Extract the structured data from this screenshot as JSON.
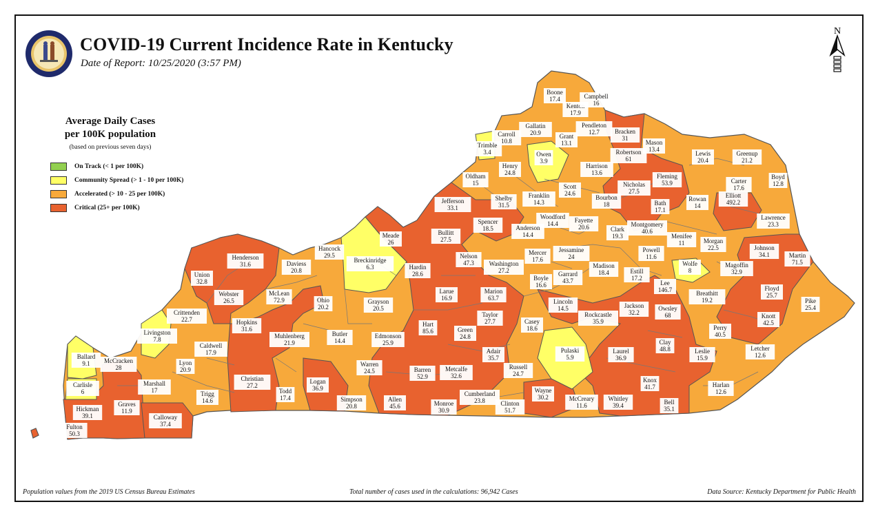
{
  "title": "COVID-19 Current Incidence Rate in Kentucky",
  "subtitle": "Date of Report: 10/25/2020 (3:57 PM)",
  "north_label": "N",
  "legend": {
    "title_line1": "Average Daily Cases",
    "title_line2": "per 100K population",
    "note": "(based on previous seven days)",
    "items": [
      {
        "label": "On Track (< 1 per 100K)",
        "color": "#92d050"
      },
      {
        "label": "Community Spread (> 1 - 10 per 100K)",
        "color": "#ffff66"
      },
      {
        "label": "Accelerated (> 10 - 25 per 100K)",
        "color": "#f7a93b"
      },
      {
        "label": "Critical (25+ per 100K)",
        "color": "#e8622f"
      }
    ]
  },
  "colors": {
    "outline": "#555555",
    "label_box": "#ffffff"
  },
  "footer": {
    "left": "Population values from the 2019 US Census Bureau Estimates",
    "center": "Total number of cases used in the calculations: 96,942 Cases",
    "right": "Data Source: Kentucky Department for Public Health"
  },
  "counties": [
    {
      "name": "Boone",
      "value": "17.4"
    },
    {
      "name": "Kenton",
      "value": "17.9"
    },
    {
      "name": "Campbell",
      "value": "16"
    },
    {
      "name": "Gallatin",
      "value": "20.9"
    },
    {
      "name": "Grant",
      "value": "13.1"
    },
    {
      "name": "Pendleton",
      "value": "12.7"
    },
    {
      "name": "Bracken",
      "value": "31"
    },
    {
      "name": "Mason",
      "value": "13.4"
    },
    {
      "name": "Robertson",
      "value": "61"
    },
    {
      "name": "Lewis",
      "value": "20.4"
    },
    {
      "name": "Greenup",
      "value": "21.2"
    },
    {
      "name": "Boyd",
      "value": "12.8"
    },
    {
      "name": "Carter",
      "value": "17.6"
    },
    {
      "name": "Carroll",
      "value": "10.8"
    },
    {
      "name": "Trimble",
      "value": "3.4"
    },
    {
      "name": "Owen",
      "value": "3.9"
    },
    {
      "name": "Henry",
      "value": "24.8"
    },
    {
      "name": "Oldham",
      "value": "15"
    },
    {
      "name": "Harrison",
      "value": "13.6"
    },
    {
      "name": "Nicholas",
      "value": "27.5"
    },
    {
      "name": "Fleming",
      "value": "53.9"
    },
    {
      "name": "Rowan",
      "value": "14"
    },
    {
      "name": "Elliott",
      "value": "492.2"
    },
    {
      "name": "Lawrence",
      "value": "23.3"
    },
    {
      "name": "Scott",
      "value": "24.6"
    },
    {
      "name": "Bourbon",
      "value": "18"
    },
    {
      "name": "Bath",
      "value": "17.1"
    },
    {
      "name": "Jefferson",
      "value": "33.1"
    },
    {
      "name": "Shelby",
      "value": "31.5"
    },
    {
      "name": "Franklin",
      "value": "14.3"
    },
    {
      "name": "Woodford",
      "value": "14.4"
    },
    {
      "name": "Fayette",
      "value": "20.6"
    },
    {
      "name": "Montgomery",
      "value": "40.6"
    },
    {
      "name": "Clark",
      "value": "19.3"
    },
    {
      "name": "Menifee",
      "value": "11"
    },
    {
      "name": "Morgan",
      "value": "22.5"
    },
    {
      "name": "Johnson",
      "value": "34.1"
    },
    {
      "name": "Martin",
      "value": "71.5"
    },
    {
      "name": "Spencer",
      "value": "18.5"
    },
    {
      "name": "Anderson",
      "value": "14.4"
    },
    {
      "name": "Bullitt",
      "value": "27.5"
    },
    {
      "name": "Meade",
      "value": "26"
    },
    {
      "name": "Hancock",
      "value": "29.5"
    },
    {
      "name": "Breckinridge",
      "value": "6.3"
    },
    {
      "name": "Henderson",
      "value": "31.6"
    },
    {
      "name": "Daviess",
      "value": "20.8"
    },
    {
      "name": "Union",
      "value": "32.8"
    },
    {
      "name": "Nelson",
      "value": "47.3"
    },
    {
      "name": "Washington",
      "value": "27.2"
    },
    {
      "name": "Mercer",
      "value": "17.6"
    },
    {
      "name": "Jessamine",
      "value": "24"
    },
    {
      "name": "Powell",
      "value": "11.6"
    },
    {
      "name": "Wolfe",
      "value": "8"
    },
    {
      "name": "Magoffin",
      "value": "32.9"
    },
    {
      "name": "Hardin",
      "value": "28.6"
    },
    {
      "name": "Madison",
      "value": "18.4"
    },
    {
      "name": "Estill",
      "value": "17.2"
    },
    {
      "name": "Garrard",
      "value": "43.7"
    },
    {
      "name": "Boyle",
      "value": "16.6"
    },
    {
      "name": "Lee",
      "value": "146.7"
    },
    {
      "name": "Breathitt",
      "value": "19.2"
    },
    {
      "name": "Floyd",
      "value": "25.7"
    },
    {
      "name": "Pike",
      "value": "25.4"
    },
    {
      "name": "Webster",
      "value": "26.5"
    },
    {
      "name": "McLean",
      "value": "72.9"
    },
    {
      "name": "Ohio",
      "value": "20.2"
    },
    {
      "name": "Larue",
      "value": "16.9"
    },
    {
      "name": "Marion",
      "value": "63.7"
    },
    {
      "name": "Grayson",
      "value": "20.5"
    },
    {
      "name": "Crittenden",
      "value": "22.7"
    },
    {
      "name": "Lincoln",
      "value": "14.5"
    },
    {
      "name": "Jackson",
      "value": "32.2"
    },
    {
      "name": "Owsley",
      "value": "68"
    },
    {
      "name": "Knott",
      "value": "42.5"
    },
    {
      "name": "Hopkins",
      "value": "31.6"
    },
    {
      "name": "Taylor",
      "value": "27.7"
    },
    {
      "name": "Rockcastle",
      "value": "35.9"
    },
    {
      "name": "Perry",
      "value": "40.5"
    },
    {
      "name": "Livingston",
      "value": "7.8"
    },
    {
      "name": "Muhlenberg",
      "value": "21.9"
    },
    {
      "name": "Butler",
      "value": "14.4"
    },
    {
      "name": "Hart",
      "value": "85.6"
    },
    {
      "name": "Green",
      "value": "24.8"
    },
    {
      "name": "Casey",
      "value": "18.6"
    },
    {
      "name": "Caldwell",
      "value": "17.9"
    },
    {
      "name": "Edmonson",
      "value": "25.9"
    },
    {
      "name": "Adair",
      "value": "35.7"
    },
    {
      "name": "Clay",
      "value": "48.8"
    },
    {
      "name": "Leslie",
      "value": "15.9"
    },
    {
      "name": "Letcher",
      "value": "12.6"
    },
    {
      "name": "Laurel",
      "value": "36.9"
    },
    {
      "name": "Pulaski",
      "value": "5.9"
    },
    {
      "name": "Ballard",
      "value": "9.1"
    },
    {
      "name": "McCracken",
      "value": "28"
    },
    {
      "name": "Lyon",
      "value": "20.9"
    },
    {
      "name": "Warren",
      "value": "24.5"
    },
    {
      "name": "Barren",
      "value": "52.9"
    },
    {
      "name": "Metcalfe",
      "value": "32.6"
    },
    {
      "name": "Russell",
      "value": "24.7"
    },
    {
      "name": "Carlisle",
      "value": "6"
    },
    {
      "name": "Marshall",
      "value": "17"
    },
    {
      "name": "Christian",
      "value": "27.2"
    },
    {
      "name": "Todd",
      "value": "17.4"
    },
    {
      "name": "Logan",
      "value": "36.9"
    },
    {
      "name": "Wayne",
      "value": "30.2"
    },
    {
      "name": "Knox",
      "value": "41.7"
    },
    {
      "name": "Harlan",
      "value": "12.6"
    },
    {
      "name": "Trigg",
      "value": "14.6"
    },
    {
      "name": "Simpson",
      "value": "20.8"
    },
    {
      "name": "Allen",
      "value": "45.6"
    },
    {
      "name": "Monroe",
      "value": "30.9"
    },
    {
      "name": "Cumberland",
      "value": "23.8"
    },
    {
      "name": "Clinton",
      "value": "51.7"
    },
    {
      "name": "McCreary",
      "value": "11.6"
    },
    {
      "name": "Whitley",
      "value": "39.4"
    },
    {
      "name": "Bell",
      "value": "35.1"
    },
    {
      "name": "Hickman",
      "value": "39.1"
    },
    {
      "name": "Graves",
      "value": "11.9"
    },
    {
      "name": "Calloway",
      "value": "37.4"
    },
    {
      "name": "Fulton",
      "value": "50.3"
    }
  ]
}
